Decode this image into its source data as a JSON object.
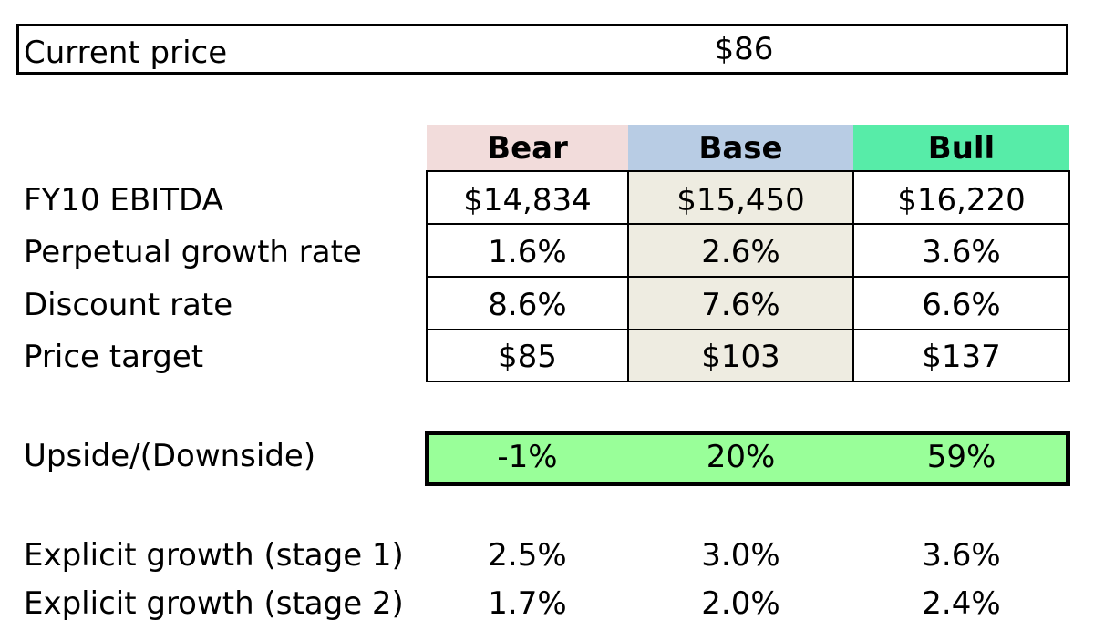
{
  "current_price": {
    "label": "Current price",
    "value": "$86"
  },
  "scenarios": [
    "Bear",
    "Base",
    "Bull"
  ],
  "colors": {
    "bear_header": "#f2dcdb",
    "base_header": "#b8cce4",
    "bull_header": "#57eca8",
    "base_column": "#eeece1",
    "upside_fill": "#99ff99"
  },
  "rows": [
    {
      "label": "FY10 EBITDA",
      "values": [
        "$14,834",
        "$15,450",
        "$16,220"
      ]
    },
    {
      "label": "Perpetual growth rate",
      "values": [
        "1.6%",
        "2.6%",
        "3.6%"
      ]
    },
    {
      "label": "Discount rate",
      "values": [
        "8.6%",
        "7.6%",
        "6.6%"
      ]
    },
    {
      "label": "Price target",
      "values": [
        "$85",
        "$103",
        "$137"
      ]
    }
  ],
  "upside": {
    "label": "Upside/(Downside)",
    "values": [
      "-1%",
      "20%",
      "59%"
    ]
  },
  "explicit": [
    {
      "label": "Explicit growth (stage 1)",
      "values": [
        "2.5%",
        "3.0%",
        "3.6%"
      ]
    },
    {
      "label": "Explicit growth (stage 2)",
      "values": [
        "1.7%",
        "2.0%",
        "2.4%"
      ]
    }
  ]
}
